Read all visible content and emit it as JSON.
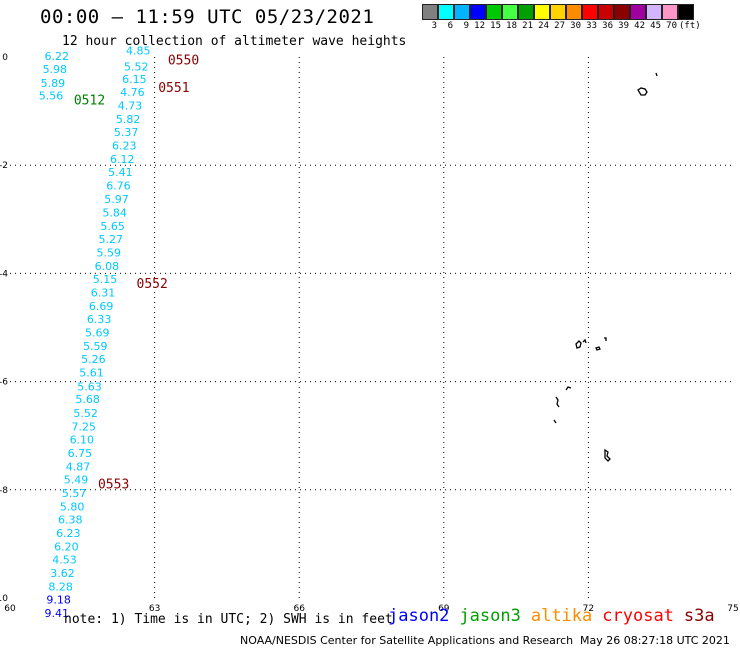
{
  "header": {
    "title": "00:00 – 11:59 UTC 05/23/2021",
    "subtitle": "12 hour collection of altimeter wave heights"
  },
  "legend": {
    "colors": [
      "#808080",
      "#00ffff",
      "#00b4ff",
      "#0000ff",
      "#00c800",
      "#44ff44",
      "#00a000",
      "#ffff00",
      "#ffd200",
      "#ff8c00",
      "#ff0000",
      "#c80000",
      "#8b0000",
      "#a000a0",
      "#d2b4ff",
      "#ff96c8",
      "#000000"
    ],
    "labels": [
      "3",
      "6",
      "9",
      "12",
      "15",
      "18",
      "21",
      "24",
      "27",
      "30",
      "33",
      "36",
      "39",
      "42",
      "45",
      "70"
    ],
    "unit": "(ft)"
  },
  "map": {
    "x_axis_labels": [
      "60",
      "63",
      "66",
      "69",
      "72",
      "75"
    ],
    "y_axis_labels": [
      "0",
      "-2",
      "-4",
      "-6",
      "-8",
      "-10"
    ],
    "grid_color": "#000000",
    "island_color": "#000000",
    "observations": [
      {
        "lon": 62.66,
        "lat": 0.05,
        "v": "4.85",
        "c": "#00c8ff"
      },
      {
        "lon": 62.62,
        "lat": -0.25,
        "v": "5.52",
        "c": "#00c8ff"
      },
      {
        "lon": 62.58,
        "lat": -0.48,
        "v": "6.15",
        "c": "#00c8ff"
      },
      {
        "lon": 62.54,
        "lat": -0.72,
        "v": "4.76",
        "c": "#00c8ff"
      },
      {
        "lon": 62.49,
        "lat": -0.97,
        "v": "4.73",
        "c": "#00c8ff"
      },
      {
        "lon": 62.45,
        "lat": -1.22,
        "v": "5.82",
        "c": "#00c8ff"
      },
      {
        "lon": 62.41,
        "lat": -1.46,
        "v": "5.37",
        "c": "#00c8ff"
      },
      {
        "lon": 62.37,
        "lat": -1.71,
        "v": "6.23",
        "c": "#00c8ff"
      },
      {
        "lon": 62.33,
        "lat": -1.96,
        "v": "6.12",
        "c": "#00c8ff"
      },
      {
        "lon": 62.29,
        "lat": -2.2,
        "v": "5.41",
        "c": "#00c8ff"
      },
      {
        "lon": 62.25,
        "lat": -2.45,
        "v": "6.76",
        "c": "#00c8ff"
      },
      {
        "lon": 62.21,
        "lat": -2.7,
        "v": "5.97",
        "c": "#00c8ff"
      },
      {
        "lon": 62.17,
        "lat": -2.95,
        "v": "5.84",
        "c": "#00c8ff"
      },
      {
        "lon": 62.13,
        "lat": -3.2,
        "v": "5.65",
        "c": "#00c8ff"
      },
      {
        "lon": 62.09,
        "lat": -3.44,
        "v": "5.27",
        "c": "#00c8ff"
      },
      {
        "lon": 62.05,
        "lat": -3.69,
        "v": "5.59",
        "c": "#00c8ff"
      },
      {
        "lon": 62.01,
        "lat": -3.94,
        "v": "6.08",
        "c": "#00c8ff"
      },
      {
        "lon": 61.97,
        "lat": -4.18,
        "v": "5.15",
        "c": "#00c8ff"
      },
      {
        "lon": 61.93,
        "lat": -4.43,
        "v": "6.31",
        "c": "#00c8ff"
      },
      {
        "lon": 61.89,
        "lat": -4.68,
        "v": "6.69",
        "c": "#00c8ff"
      },
      {
        "lon": 61.85,
        "lat": -4.92,
        "v": "6.33",
        "c": "#00c8ff"
      },
      {
        "lon": 61.81,
        "lat": -5.17,
        "v": "5.69",
        "c": "#00c8ff"
      },
      {
        "lon": 61.77,
        "lat": -5.42,
        "v": "5.59",
        "c": "#00c8ff"
      },
      {
        "lon": 61.73,
        "lat": -5.66,
        "v": "5.26",
        "c": "#00c8ff"
      },
      {
        "lon": 61.69,
        "lat": -5.91,
        "v": "5.61",
        "c": "#00c8ff"
      },
      {
        "lon": 61.65,
        "lat": -6.16,
        "v": "5.63",
        "c": "#00c8ff"
      },
      {
        "lon": 61.61,
        "lat": -6.4,
        "v": "5.68",
        "c": "#00c8ff"
      },
      {
        "lon": 61.57,
        "lat": -6.65,
        "v": "5.52",
        "c": "#00c8ff"
      },
      {
        "lon": 61.53,
        "lat": -6.9,
        "v": "7.25",
        "c": "#00c8ff"
      },
      {
        "lon": 61.49,
        "lat": -7.14,
        "v": "6.10",
        "c": "#00c8ff"
      },
      {
        "lon": 61.45,
        "lat": -7.39,
        "v": "6.75",
        "c": "#00c8ff"
      },
      {
        "lon": 61.41,
        "lat": -7.64,
        "v": "4.87",
        "c": "#00c8ff"
      },
      {
        "lon": 61.37,
        "lat": -7.88,
        "v": "5.49",
        "c": "#00c8ff"
      },
      {
        "lon": 61.33,
        "lat": -8.13,
        "v": "5.57",
        "c": "#00c8ff"
      },
      {
        "lon": 61.29,
        "lat": -8.38,
        "v": "5.80",
        "c": "#00c8ff"
      },
      {
        "lon": 61.25,
        "lat": -8.62,
        "v": "6.38",
        "c": "#00c8ff"
      },
      {
        "lon": 61.21,
        "lat": -8.87,
        "v": "6.23",
        "c": "#00c8ff"
      },
      {
        "lon": 61.17,
        "lat": -9.12,
        "v": "6.20",
        "c": "#00c8ff"
      },
      {
        "lon": 61.13,
        "lat": -9.36,
        "v": "4.53",
        "c": "#00c8ff"
      },
      {
        "lon": 61.09,
        "lat": -9.61,
        "v": "3.62",
        "c": "#00c8ff"
      },
      {
        "lon": 61.05,
        "lat": -9.86,
        "v": "8.28",
        "c": "#00c8ff"
      },
      {
        "lon": 61.01,
        "lat": -10.1,
        "v": "9.18",
        "c": "#0000ff"
      },
      {
        "lon": 60.97,
        "lat": -10.35,
        "v": "9.41",
        "c": "#0000ff"
      },
      {
        "lon": 60.97,
        "lat": -0.06,
        "v": "6.22",
        "c": "#00c8ff"
      },
      {
        "lon": 60.93,
        "lat": -0.3,
        "v": "5.98",
        "c": "#00c8ff"
      },
      {
        "lon": 60.89,
        "lat": -0.55,
        "v": "5.89",
        "c": "#00c8ff"
      },
      {
        "lon": 60.85,
        "lat": -0.79,
        "v": "5.56",
        "c": "#00c8ff"
      }
    ],
    "time_labels": [
      {
        "lon": 63.6,
        "lat": -0.05,
        "t": "0550",
        "c": "#8b0000"
      },
      {
        "lon": 63.4,
        "lat": -0.55,
        "t": "0551",
        "c": "#8b0000"
      },
      {
        "lon": 62.95,
        "lat": -4.18,
        "t": "0552",
        "c": "#8b0000"
      },
      {
        "lon": 62.15,
        "lat": -7.88,
        "t": "0553",
        "c": "#8b0000"
      },
      {
        "lon": 61.65,
        "lat": -0.79,
        "t": "0512",
        "c": "#008000"
      }
    ]
  },
  "note": "note: 1) Time is in UTC; 2) SWH is in feet",
  "satellites": [
    {
      "name": "jason2",
      "color": "#0000ff"
    },
    {
      "name": "jason3",
      "color": "#00a000"
    },
    {
      "name": "altika",
      "color": "#ff8c00"
    },
    {
      "name": "cryosat",
      "color": "#ff0000"
    },
    {
      "name": "s3a",
      "color": "#8b0000"
    }
  ],
  "footer": {
    "credit": "NOAA/NESDIS Center for Satellite Applications and Research",
    "timestamp": "May 26 08:27:18 UTC 2021"
  }
}
